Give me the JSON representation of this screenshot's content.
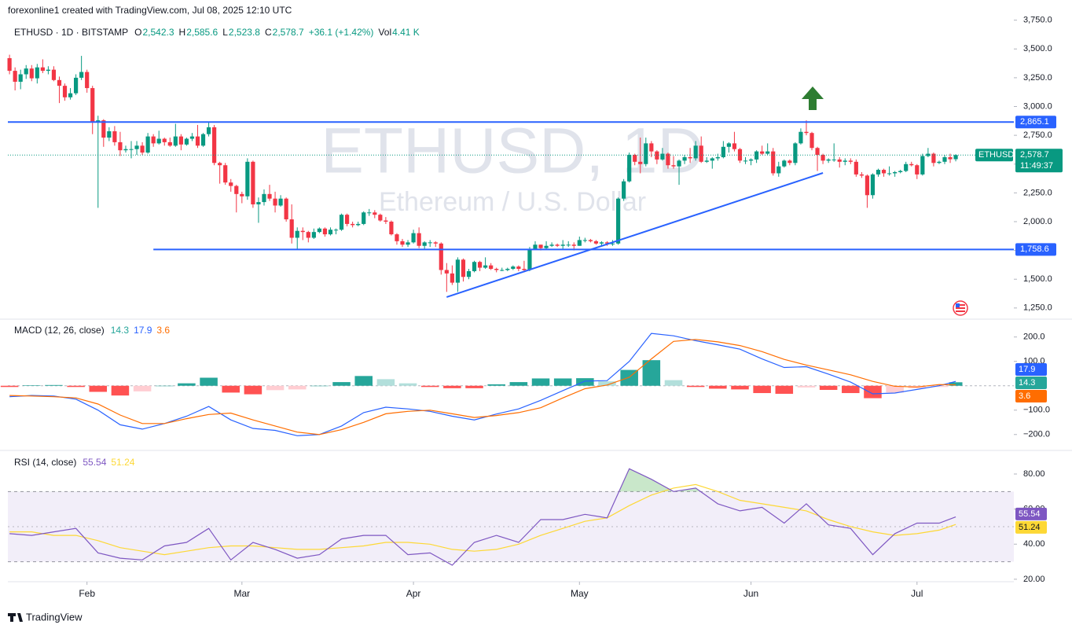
{
  "header": "forexonline1 created with TradingView.com, Jul 08, 2025 12:10 UTC",
  "footer": "TradingView",
  "chart_data": [
    {
      "type": "candlestick",
      "title": "ETHUSD · 1D · BITSTAMP",
      "legend": [
        {
          "k": "O",
          "v": "2,542.3"
        },
        {
          "k": "H",
          "v": "2,585.6"
        },
        {
          "k": "L",
          "v": "2,523.8"
        },
        {
          "k": "C",
          "v": "2,578.7"
        },
        {
          "v": "+36.1 (+1.42%)"
        },
        {
          "k": "Vol",
          "v": "4.41 K"
        }
      ],
      "watermark_title": "ETHUSD, 1D",
      "watermark_subtitle": "Ethereum / U.S. Dollar",
      "up_color": "#089981",
      "down_color": "#f23645",
      "xlim": [
        -0.3,
        181.5
      ],
      "xticks": [
        {
          "value": 14,
          "label": "Feb"
        },
        {
          "value": 42,
          "label": "Mar"
        },
        {
          "value": 73,
          "label": "Apr"
        },
        {
          "value": 103,
          "label": "May"
        },
        {
          "value": 134,
          "label": "Jun"
        },
        {
          "value": 164,
          "label": "Jul"
        }
      ],
      "ylim": [
        1160,
        3775
      ],
      "yticks": [
        {
          "value": 1250,
          "label": "1,250.0"
        },
        {
          "value": 1500,
          "label": "1,500.0"
        },
        {
          "value": 1750,
          "label": "1,750.0"
        },
        {
          "value": 2000,
          "label": "2,000.0"
        },
        {
          "value": 2250,
          "label": "2,250.0"
        },
        {
          "value": 2500,
          "label": "2,500.0"
        },
        {
          "value": 2750,
          "label": "2,750.0"
        },
        {
          "value": 3000,
          "label": "3,000.0"
        },
        {
          "value": 3250,
          "label": "3,250.0"
        },
        {
          "value": 3500,
          "label": "3,500.0"
        },
        {
          "value": 3750,
          "label": "3,750.0"
        }
      ],
      "grid": false,
      "open": [
        3420,
        3310,
        3215,
        3280,
        3330,
        3245,
        3340,
        3310,
        3320,
        3230,
        3180,
        3080,
        3115,
        3250,
        3300,
        3160,
        2870,
        2880,
        2730,
        2785,
        2690,
        2620,
        2630,
        2630,
        2660,
        2600,
        2740,
        2680,
        2720,
        2690,
        2660,
        2740,
        2670,
        2720,
        2740,
        2660,
        2760,
        2820,
        2510,
        2490,
        2340,
        2310,
        2240,
        2220,
        2520,
        2150,
        2170,
        2240,
        2200,
        2140,
        2200,
        2020,
        1860,
        1920,
        1910,
        1860,
        1910,
        1940,
        1890,
        1930,
        1930,
        2060,
        1980,
        1970,
        1980,
        2080,
        2080,
        2060,
        2010,
        2000,
        1890,
        1830,
        1800,
        1820,
        1900,
        1790,
        1820,
        1820,
        1810,
        1580,
        1550,
        1470,
        1670,
        1520,
        1570,
        1650,
        1600,
        1620,
        1590,
        1580,
        1580,
        1590,
        1610,
        1590,
        1580,
        1760,
        1800,
        1770,
        1790,
        1800,
        1790,
        1800,
        1800,
        1790,
        1840,
        1840,
        1830,
        1810,
        1820,
        1810,
        1810,
        2200,
        2350,
        2580,
        2520,
        2500,
        2680,
        2610,
        2540,
        2590,
        2490,
        2480,
        2530,
        2560,
        2550,
        2660,
        2520,
        2530,
        2550,
        2560,
        2650,
        2680,
        2630,
        2530,
        2530,
        2540,
        2610,
        2590,
        2610,
        2420,
        2480,
        2530,
        2510,
        2680,
        2780,
        2770,
        2640,
        2580,
        2530,
        2540,
        2540,
        2520,
        2530,
        2520,
        2410,
        2400,
        2230,
        2410,
        2450,
        2420,
        2420,
        2430,
        2440,
        2500,
        2490,
        2410,
        2570,
        2590,
        2510,
        2520,
        2560,
        2542.3
      ],
      "high": [
        3450,
        3340,
        3320,
        3360,
        3360,
        3370,
        3410,
        3350,
        3350,
        3260,
        3200,
        3160,
        3280,
        3440,
        3320,
        3180,
        2920,
        2890,
        2820,
        2830,
        2780,
        2660,
        2700,
        2700,
        2690,
        2770,
        2760,
        2790,
        2730,
        2730,
        2850,
        2760,
        2730,
        2770,
        2840,
        2770,
        2860,
        2840,
        2520,
        2510,
        2370,
        2320,
        2260,
        2550,
        2530,
        2210,
        2280,
        2320,
        2260,
        2230,
        2210,
        2150,
        1950,
        1950,
        1920,
        1940,
        1950,
        1950,
        1950,
        1940,
        2070,
        2070,
        2000,
        2000,
        2090,
        2110,
        2100,
        2070,
        2040,
        2010,
        1900,
        1850,
        1840,
        1930,
        1950,
        1830,
        1840,
        1830,
        1820,
        1640,
        1620,
        1690,
        1680,
        1590,
        1660,
        1660,
        1690,
        1640,
        1600,
        1600,
        1600,
        1620,
        1620,
        1660,
        1780,
        1830,
        1800,
        1830,
        1820,
        1810,
        1840,
        1830,
        1820,
        1870,
        1860,
        1850,
        1840,
        1830,
        1830,
        1840,
        2210,
        2370,
        2600,
        2590,
        2730,
        2730,
        2700,
        2620,
        2640,
        2600,
        2570,
        2540,
        2580,
        2640,
        2700,
        2740,
        2560,
        2560,
        2590,
        2700,
        2690,
        2780,
        2640,
        2560,
        2550,
        2620,
        2660,
        2680,
        2640,
        2520,
        2540,
        2540,
        2690,
        2810,
        2880,
        2780,
        2650,
        2590,
        2550,
        2680,
        2560,
        2550,
        2550,
        2540,
        2430,
        2410,
        2420,
        2460,
        2460,
        2480,
        2440,
        2450,
        2520,
        2520,
        2500,
        2590,
        2640,
        2600,
        2530,
        2580,
        2590,
        2585.6
      ],
      "low": [
        3280,
        3140,
        3150,
        3240,
        3220,
        3200,
        3290,
        3280,
        3220,
        3030,
        3050,
        3060,
        3100,
        3230,
        3120,
        2760,
        2120,
        2650,
        2700,
        2660,
        2570,
        2600,
        2550,
        2580,
        2580,
        2590,
        2650,
        2670,
        2660,
        2650,
        2650,
        2620,
        2660,
        2700,
        2640,
        2650,
        2740,
        2490,
        2330,
        2320,
        2260,
        2080,
        2160,
        2190,
        2120,
        1990,
        2140,
        2180,
        2080,
        2130,
        2000,
        1810,
        1760,
        1840,
        1820,
        1850,
        1900,
        1870,
        1880,
        1890,
        1920,
        1960,
        1950,
        1960,
        1970,
        2050,
        2030,
        2000,
        1980,
        1880,
        1800,
        1780,
        1780,
        1810,
        1770,
        1760,
        1780,
        1780,
        1540,
        1390,
        1450,
        1390,
        1480,
        1500,
        1560,
        1570,
        1590,
        1580,
        1560,
        1570,
        1570,
        1580,
        1570,
        1560,
        1570,
        1760,
        1750,
        1760,
        1780,
        1780,
        1760,
        1780,
        1750,
        1790,
        1820,
        1820,
        1800,
        1790,
        1790,
        1790,
        1800,
        2180,
        2340,
        2490,
        2420,
        2480,
        2560,
        2500,
        2530,
        2460,
        2460,
        2320,
        2500,
        2510,
        2530,
        2510,
        2510,
        2460,
        2530,
        2550,
        2600,
        2610,
        2510,
        2500,
        2490,
        2510,
        2580,
        2580,
        2400,
        2390,
        2470,
        2490,
        2490,
        2670,
        2750,
        2620,
        2440,
        2500,
        2510,
        2520,
        2470,
        2490,
        2500,
        2390,
        2380,
        2120,
        2200,
        2390,
        2390,
        2400,
        2390,
        2420,
        2430,
        2480,
        2370,
        2400,
        2560,
        2480,
        2500,
        2500,
        2510,
        2523.8
      ],
      "close": [
        3310,
        3215,
        3280,
        3330,
        3245,
        3340,
        3310,
        3320,
        3230,
        3180,
        3080,
        3115,
        3250,
        3300,
        3160,
        2870,
        2880,
        2730,
        2785,
        2690,
        2620,
        2630,
        2630,
        2660,
        2600,
        2740,
        2680,
        2720,
        2690,
        2660,
        2740,
        2670,
        2720,
        2740,
        2660,
        2760,
        2820,
        2510,
        2490,
        2340,
        2310,
        2240,
        2220,
        2520,
        2150,
        2170,
        2240,
        2200,
        2140,
        2200,
        2020,
        1860,
        1920,
        1910,
        1860,
        1910,
        1940,
        1890,
        1930,
        1930,
        2060,
        1980,
        1970,
        1980,
        2080,
        2080,
        2060,
        2010,
        2000,
        1890,
        1830,
        1800,
        1820,
        1900,
        1790,
        1820,
        1820,
        1810,
        1580,
        1550,
        1470,
        1670,
        1520,
        1570,
        1650,
        1600,
        1620,
        1590,
        1580,
        1580,
        1590,
        1610,
        1590,
        1580,
        1760,
        1800,
        1770,
        1790,
        1800,
        1790,
        1800,
        1800,
        1790,
        1840,
        1840,
        1830,
        1810,
        1820,
        1810,
        1810,
        2200,
        2350,
        2580,
        2520,
        2500,
        2680,
        2610,
        2540,
        2590,
        2490,
        2480,
        2530,
        2560,
        2550,
        2660,
        2520,
        2530,
        2550,
        2560,
        2650,
        2680,
        2630,
        2530,
        2530,
        2540,
        2610,
        2590,
        2610,
        2420,
        2480,
        2530,
        2510,
        2680,
        2780,
        2770,
        2640,
        2580,
        2530,
        2540,
        2540,
        2520,
        2530,
        2520,
        2410,
        2400,
        2230,
        2410,
        2450,
        2420,
        2420,
        2430,
        2440,
        2500,
        2490,
        2410,
        2570,
        2590,
        2510,
        2520,
        2560,
        2542,
        2578.7
      ],
      "levels": [
        {
          "value": 2865.1,
          "label": "2,865.1",
          "color": "#2962ff"
        },
        {
          "value": 1758.6,
          "label": "1,758.6",
          "color": "#2962ff",
          "from": 26
        }
      ],
      "trendline": {
        "x": [
          79,
          147
        ],
        "y": [
          1345,
          2423
        ],
        "color": "#2962ff"
      },
      "last": {
        "name": "ETHUSD",
        "label": "2,578.7",
        "countdown": "11:49:37",
        "color": "#089981"
      }
    },
    {
      "type": "macd",
      "title": "MACD (12, 26, close)",
      "ylim": [
        -262,
        270
      ],
      "yticks": [
        {
          "value": 200,
          "label": "200.0"
        },
        {
          "value": 100,
          "label": "100.0"
        },
        {
          "value": -100,
          "label": "−100.0"
        },
        {
          "value": -200,
          "label": "−200.0"
        }
      ],
      "baseline": 0,
      "x": [
        0,
        4,
        8,
        12,
        16,
        20,
        24,
        28,
        32,
        36,
        40,
        44,
        48,
        52,
        56,
        60,
        64,
        68,
        72,
        76,
        80,
        84,
        88,
        92,
        96,
        100,
        104,
        108,
        112,
        116,
        120,
        124,
        128,
        132,
        136,
        140,
        144,
        148,
        152,
        156,
        160,
        164,
        168,
        171
      ],
      "histogram": {
        "colors": [
          "#26a69a",
          "#b2dfdb",
          "#ff5252",
          "#ffcdd2"
        ],
        "values": [
          -5,
          2,
          3,
          -5,
          -25,
          -40,
          -23,
          0,
          10,
          33,
          -28,
          -35,
          -18,
          -15,
          0,
          15,
          40,
          27,
          10,
          -5,
          -10,
          -10,
          6,
          15,
          30,
          30,
          31,
          18,
          65,
          105,
          23,
          -5,
          -12,
          -15,
          -30,
          -33,
          -7,
          -17,
          -30,
          -51,
          -28,
          -10,
          -5,
          14.3
        ]
      },
      "series": [
        {
          "color": "#2962ff",
          "values": [
            -45,
            -40,
            -42,
            -55,
            -100,
            -160,
            -178,
            -155,
            -125,
            -85,
            -140,
            -175,
            -183,
            -205,
            -200,
            -165,
            -110,
            -88,
            -95,
            -105,
            -125,
            -140,
            -116,
            -95,
            -60,
            -20,
            19,
            21,
            100,
            215,
            205,
            185,
            168,
            150,
            110,
            75,
            78,
            48,
            15,
            -33,
            -30,
            -15,
            0,
            17.9
          ]
        },
        {
          "color": "#ff6d00",
          "values": [
            -40,
            -42,
            -45,
            -50,
            -75,
            -120,
            -155,
            -155,
            -135,
            -118,
            -112,
            -140,
            -165,
            -190,
            -200,
            -180,
            -150,
            -115,
            -105,
            -100,
            -115,
            -130,
            -122,
            -110,
            -90,
            -50,
            -12,
            3,
            35,
            110,
            182,
            190,
            180,
            165,
            140,
            108,
            85,
            65,
            45,
            18,
            -2,
            -5,
            5,
            3.6
          ]
        }
      ]
    },
    {
      "type": "rsi",
      "title": "RSI (14, close)",
      "ylim": [
        18.6,
        93
      ],
      "yticks": [
        {
          "value": 20,
          "label": "20.00"
        },
        {
          "value": 40,
          "label": "40.00"
        },
        {
          "value": 60,
          "label": "60.00"
        },
        {
          "value": 80,
          "label": "80.00"
        }
      ],
      "bands": [
        70,
        50,
        30
      ],
      "x": [
        0,
        4,
        8,
        12,
        16,
        20,
        24,
        28,
        32,
        36,
        40,
        44,
        48,
        52,
        56,
        60,
        64,
        68,
        72,
        76,
        80,
        84,
        88,
        92,
        96,
        100,
        104,
        108,
        112,
        116,
        120,
        124,
        128,
        132,
        136,
        140,
        144,
        148,
        152,
        156,
        160,
        164,
        168,
        171
      ],
      "series": [
        {
          "color": "#7e57c2",
          "values": [
            46,
            45,
            47,
            49,
            35,
            32,
            31,
            39,
            41,
            49,
            31,
            41,
            37,
            32,
            34,
            43,
            45,
            45,
            34,
            35,
            28,
            41,
            45,
            41,
            54,
            54,
            57,
            55,
            83,
            77,
            70,
            72,
            63,
            59,
            61,
            52,
            63,
            51,
            49,
            34,
            46,
            52,
            52,
            55.54
          ]
        },
        {
          "color": "#fdd835",
          "values": [
            47,
            47,
            45,
            45,
            42,
            38,
            36,
            34,
            36,
            38,
            39,
            39,
            38,
            37,
            37,
            38,
            39,
            41,
            41,
            40,
            37,
            36,
            37,
            40,
            45,
            49,
            53,
            55,
            62,
            68,
            72,
            74,
            70,
            65,
            63,
            61,
            59,
            54,
            50,
            47,
            45,
            46,
            48,
            51.24
          ]
        }
      ]
    }
  ]
}
